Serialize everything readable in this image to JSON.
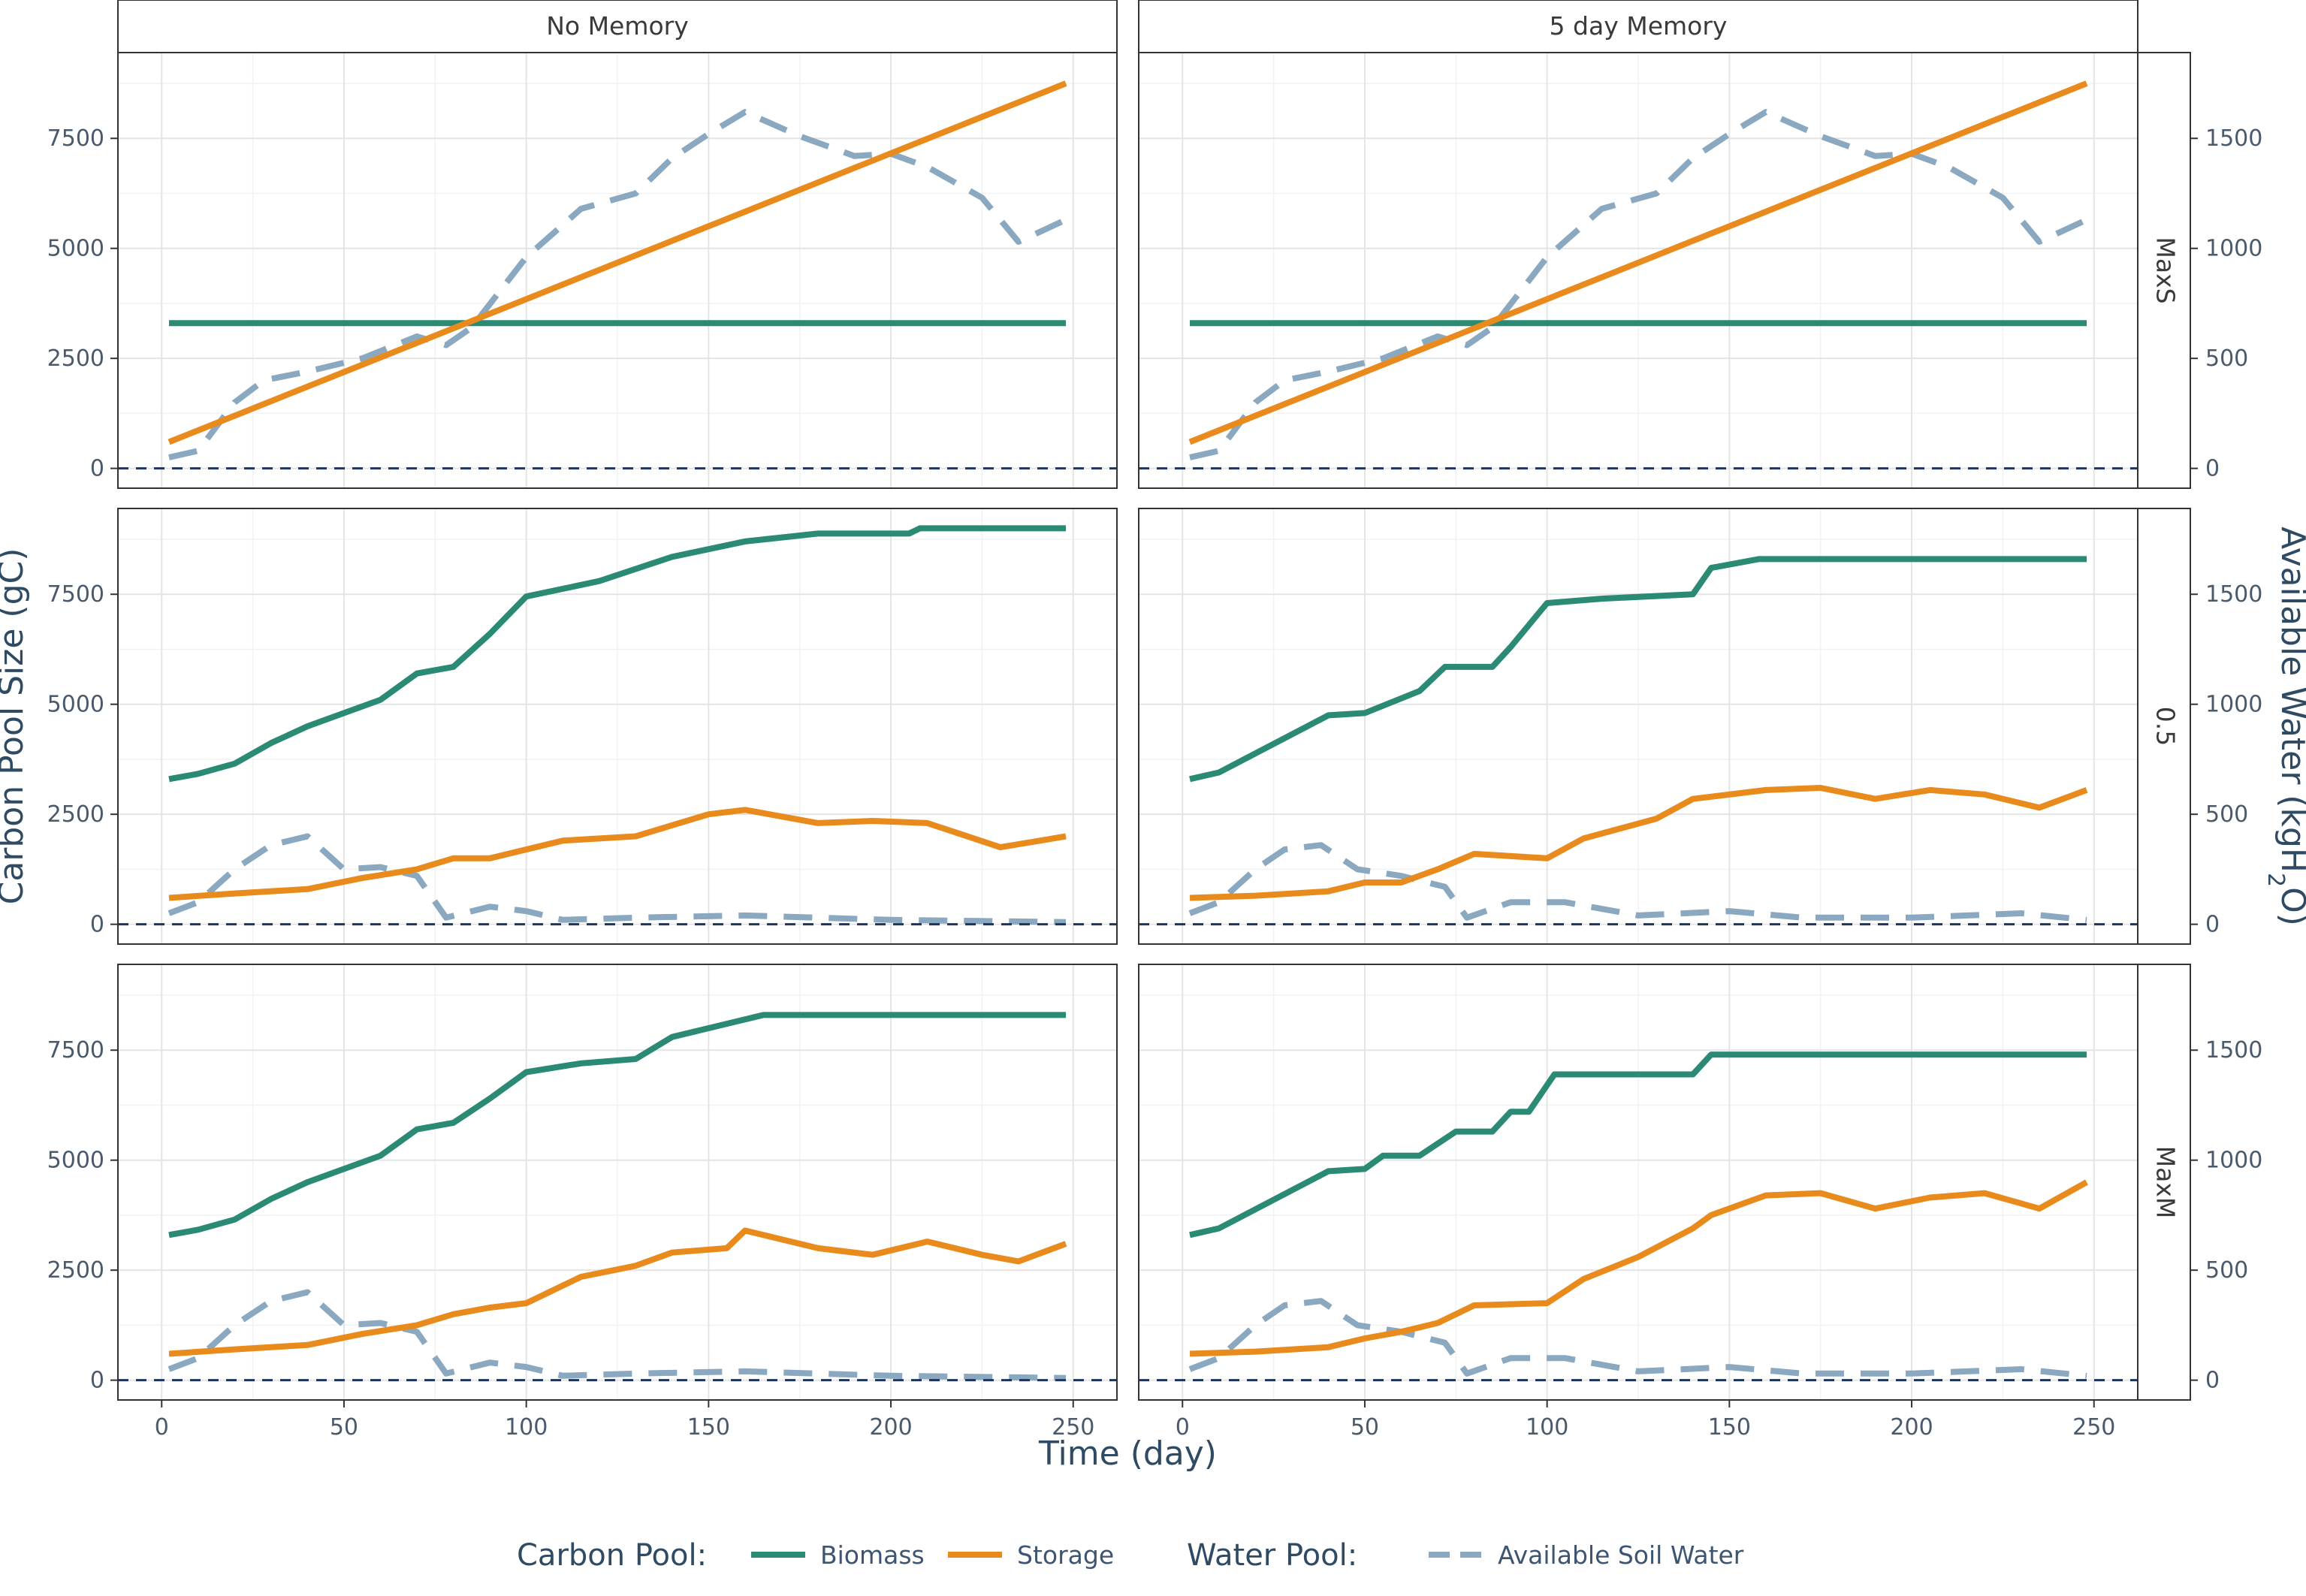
{
  "chart_data": {
    "type": "line",
    "x_axis": {
      "label": "Time (day)",
      "ticks": [
        0,
        50,
        100,
        150,
        200,
        250
      ],
      "range": [
        -12,
        262
      ]
    },
    "y_left": {
      "label": "Carbon Pool Size (gC)",
      "ticks": [
        0,
        2500,
        5000,
        7500
      ],
      "range": [
        -450,
        9450
      ]
    },
    "y_right": {
      "label_main": "Available Water (kgH",
      "label_sub": "2",
      "label_end": "O)",
      "ticks": [
        0,
        500,
        1000,
        1500
      ],
      "range": [
        -90,
        1890
      ]
    },
    "columns": [
      "No Memory",
      "5 day Memory"
    ],
    "rows": [
      "MaxS",
      "0.5",
      "MaxM"
    ],
    "legend": {
      "carbon_title": "Carbon Pool:",
      "water_title": "Water Pool:",
      "items": [
        {
          "label": "Biomass",
          "color": "#2a8a74",
          "dashed": false
        },
        {
          "label": "Storage",
          "color": "#e88a1c",
          "dashed": false
        },
        {
          "label": "Available Soil Water",
          "color": "#8aa8bf",
          "dashed": true
        }
      ]
    },
    "colors": {
      "biomass": "#2a8a74",
      "storage": "#e88a1c",
      "water": "#8aa8bf",
      "zero_line": "#1d3557"
    },
    "panels": [
      {
        "row": "MaxS",
        "col": "No Memory",
        "biomass": [
          [
            2,
            3300
          ],
          [
            248,
            3300
          ]
        ],
        "storage": [
          [
            2,
            600
          ],
          [
            248,
            8750
          ]
        ],
        "water": [
          [
            2,
            50
          ],
          [
            10,
            80
          ],
          [
            20,
            300
          ],
          [
            28,
            400
          ],
          [
            40,
            440
          ],
          [
            55,
            500
          ],
          [
            70,
            600
          ],
          [
            78,
            560
          ],
          [
            85,
            640
          ],
          [
            100,
            960
          ],
          [
            115,
            1180
          ],
          [
            130,
            1250
          ],
          [
            140,
            1410
          ],
          [
            150,
            1520
          ],
          [
            160,
            1620
          ],
          [
            175,
            1510
          ],
          [
            190,
            1420
          ],
          [
            200,
            1430
          ],
          [
            210,
            1370
          ],
          [
            225,
            1230
          ],
          [
            235,
            1030
          ],
          [
            248,
            1130
          ]
        ]
      },
      {
        "row": "MaxS",
        "col": "5 day Memory",
        "biomass": [
          [
            2,
            3300
          ],
          [
            248,
            3300
          ]
        ],
        "storage": [
          [
            2,
            600
          ],
          [
            248,
            8750
          ]
        ],
        "water": [
          [
            2,
            50
          ],
          [
            10,
            80
          ],
          [
            20,
            300
          ],
          [
            28,
            400
          ],
          [
            40,
            440
          ],
          [
            55,
            500
          ],
          [
            70,
            600
          ],
          [
            78,
            560
          ],
          [
            85,
            640
          ],
          [
            100,
            960
          ],
          [
            115,
            1180
          ],
          [
            130,
            1250
          ],
          [
            140,
            1410
          ],
          [
            150,
            1520
          ],
          [
            160,
            1620
          ],
          [
            175,
            1510
          ],
          [
            190,
            1420
          ],
          [
            200,
            1430
          ],
          [
            210,
            1370
          ],
          [
            225,
            1230
          ],
          [
            235,
            1030
          ],
          [
            248,
            1130
          ]
        ]
      },
      {
        "row": "0.5",
        "col": "No Memory",
        "biomass": [
          [
            2,
            3300
          ],
          [
            10,
            3420
          ],
          [
            20,
            3650
          ],
          [
            30,
            4120
          ],
          [
            40,
            4500
          ],
          [
            50,
            4800
          ],
          [
            60,
            5100
          ],
          [
            70,
            5700
          ],
          [
            80,
            5850
          ],
          [
            90,
            6600
          ],
          [
            100,
            7450
          ],
          [
            120,
            7800
          ],
          [
            140,
            8350
          ],
          [
            160,
            8700
          ],
          [
            180,
            8880
          ],
          [
            205,
            8880
          ],
          [
            208,
            9000
          ],
          [
            248,
            9000
          ]
        ],
        "storage": [
          [
            2,
            600
          ],
          [
            20,
            700
          ],
          [
            40,
            800
          ],
          [
            55,
            1050
          ],
          [
            70,
            1250
          ],
          [
            80,
            1500
          ],
          [
            90,
            1500
          ],
          [
            110,
            1900
          ],
          [
            130,
            2000
          ],
          [
            150,
            2500
          ],
          [
            160,
            2600
          ],
          [
            180,
            2300
          ],
          [
            195,
            2350
          ],
          [
            210,
            2300
          ],
          [
            230,
            1750
          ],
          [
            248,
            2000
          ]
        ],
        "water": [
          [
            2,
            50
          ],
          [
            10,
            100
          ],
          [
            20,
            250
          ],
          [
            30,
            360
          ],
          [
            40,
            400
          ],
          [
            50,
            250
          ],
          [
            60,
            260
          ],
          [
            70,
            220
          ],
          [
            78,
            30
          ],
          [
            90,
            80
          ],
          [
            100,
            60
          ],
          [
            110,
            20
          ],
          [
            130,
            30
          ],
          [
            160,
            40
          ],
          [
            200,
            20
          ],
          [
            248,
            10
          ]
        ]
      },
      {
        "row": "0.5",
        "col": "5 day Memory",
        "biomass": [
          [
            2,
            3300
          ],
          [
            10,
            3450
          ],
          [
            40,
            4750
          ],
          [
            50,
            4800
          ],
          [
            65,
            5300
          ],
          [
            72,
            5850
          ],
          [
            85,
            5850
          ],
          [
            90,
            6300
          ],
          [
            100,
            7300
          ],
          [
            115,
            7400
          ],
          [
            140,
            7500
          ],
          [
            145,
            8100
          ],
          [
            158,
            8300
          ],
          [
            248,
            8300
          ]
        ],
        "storage": [
          [
            2,
            600
          ],
          [
            20,
            650
          ],
          [
            40,
            750
          ],
          [
            50,
            950
          ],
          [
            60,
            950
          ],
          [
            70,
            1250
          ],
          [
            80,
            1600
          ],
          [
            100,
            1500
          ],
          [
            110,
            1950
          ],
          [
            130,
            2400
          ],
          [
            140,
            2850
          ],
          [
            160,
            3050
          ],
          [
            175,
            3100
          ],
          [
            190,
            2850
          ],
          [
            205,
            3050
          ],
          [
            220,
            2950
          ],
          [
            235,
            2650
          ],
          [
            248,
            3050
          ]
        ],
        "water": [
          [
            2,
            50
          ],
          [
            10,
            100
          ],
          [
            20,
            250
          ],
          [
            28,
            340
          ],
          [
            38,
            360
          ],
          [
            48,
            250
          ],
          [
            60,
            220
          ],
          [
            72,
            170
          ],
          [
            78,
            30
          ],
          [
            90,
            100
          ],
          [
            105,
            100
          ],
          [
            125,
            40
          ],
          [
            150,
            60
          ],
          [
            170,
            30
          ],
          [
            200,
            30
          ],
          [
            230,
            50
          ],
          [
            248,
            20
          ]
        ]
      },
      {
        "row": "MaxM",
        "col": "No Memory",
        "biomass": [
          [
            2,
            3300
          ],
          [
            10,
            3420
          ],
          [
            20,
            3650
          ],
          [
            30,
            4120
          ],
          [
            40,
            4500
          ],
          [
            50,
            4800
          ],
          [
            60,
            5100
          ],
          [
            70,
            5700
          ],
          [
            80,
            5850
          ],
          [
            90,
            6400
          ],
          [
            100,
            7000
          ],
          [
            115,
            7200
          ],
          [
            130,
            7300
          ],
          [
            140,
            7800
          ],
          [
            155,
            8100
          ],
          [
            165,
            8300
          ],
          [
            248,
            8300
          ]
        ],
        "storage": [
          [
            2,
            600
          ],
          [
            20,
            700
          ],
          [
            40,
            800
          ],
          [
            55,
            1050
          ],
          [
            70,
            1250
          ],
          [
            80,
            1500
          ],
          [
            90,
            1650
          ],
          [
            100,
            1750
          ],
          [
            115,
            2350
          ],
          [
            130,
            2600
          ],
          [
            140,
            2900
          ],
          [
            155,
            3000
          ],
          [
            160,
            3400
          ],
          [
            180,
            3000
          ],
          [
            195,
            2850
          ],
          [
            210,
            3150
          ],
          [
            225,
            2850
          ],
          [
            235,
            2700
          ],
          [
            248,
            3100
          ]
        ],
        "water": [
          [
            2,
            50
          ],
          [
            10,
            100
          ],
          [
            20,
            250
          ],
          [
            30,
            360
          ],
          [
            40,
            400
          ],
          [
            50,
            250
          ],
          [
            60,
            260
          ],
          [
            70,
            220
          ],
          [
            78,
            30
          ],
          [
            90,
            80
          ],
          [
            100,
            60
          ],
          [
            110,
            20
          ],
          [
            130,
            30
          ],
          [
            160,
            40
          ],
          [
            200,
            20
          ],
          [
            248,
            10
          ]
        ]
      },
      {
        "row": "MaxM",
        "col": "5 day Memory",
        "biomass": [
          [
            2,
            3300
          ],
          [
            10,
            3450
          ],
          [
            40,
            4750
          ],
          [
            50,
            4800
          ],
          [
            55,
            5100
          ],
          [
            65,
            5100
          ],
          [
            75,
            5650
          ],
          [
            85,
            5650
          ],
          [
            90,
            6100
          ],
          [
            95,
            6100
          ],
          [
            102,
            6950
          ],
          [
            140,
            6950
          ],
          [
            145,
            7400
          ],
          [
            248,
            7400
          ]
        ],
        "storage": [
          [
            2,
            600
          ],
          [
            20,
            650
          ],
          [
            40,
            750
          ],
          [
            50,
            950
          ],
          [
            60,
            1100
          ],
          [
            70,
            1300
          ],
          [
            80,
            1700
          ],
          [
            100,
            1750
          ],
          [
            110,
            2300
          ],
          [
            125,
            2800
          ],
          [
            140,
            3450
          ],
          [
            145,
            3750
          ],
          [
            160,
            4200
          ],
          [
            175,
            4250
          ],
          [
            190,
            3900
          ],
          [
            205,
            4150
          ],
          [
            220,
            4250
          ],
          [
            235,
            3900
          ],
          [
            248,
            4500
          ]
        ],
        "water": [
          [
            2,
            50
          ],
          [
            10,
            100
          ],
          [
            20,
            250
          ],
          [
            28,
            340
          ],
          [
            38,
            360
          ],
          [
            48,
            250
          ],
          [
            60,
            220
          ],
          [
            72,
            170
          ],
          [
            78,
            30
          ],
          [
            90,
            100
          ],
          [
            105,
            100
          ],
          [
            125,
            40
          ],
          [
            150,
            60
          ],
          [
            170,
            30
          ],
          [
            200,
            30
          ],
          [
            230,
            50
          ],
          [
            248,
            20
          ]
        ]
      }
    ]
  }
}
